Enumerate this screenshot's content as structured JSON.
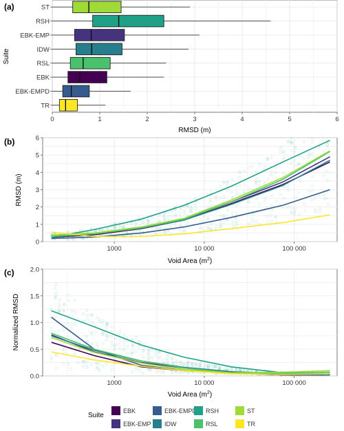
{
  "panels": {
    "a": {
      "letter": "(a)",
      "xlabel": "RMSD (m)",
      "ylabel": "Suite",
      "xticks": [
        "0",
        "1",
        "2",
        "3",
        "4",
        "5",
        "6"
      ]
    },
    "b": {
      "letter": "(b)",
      "xlabel_main": "Void Area (m",
      "xlabel_sup": "2",
      "xlabel_close": ")",
      "ylabel": "RMSD (m)",
      "xticks": [
        "1000",
        "10 000",
        "100 000"
      ],
      "yticks": [
        "0",
        "1",
        "2",
        "3",
        "4",
        "5",
        "6"
      ]
    },
    "c": {
      "letter": "(c)",
      "xlabel_main": "Void Area (m",
      "xlabel_sup": "2",
      "xlabel_close": ")",
      "ylabel": "Normalized RMSD",
      "xticks": [
        "1000",
        "10 000",
        "100 000"
      ],
      "yticks": [
        "0.0",
        "0.5",
        "1.0",
        "1.5",
        "2.0"
      ]
    }
  },
  "legend": {
    "title": "Suite",
    "position": "bottom",
    "items": [
      {
        "name": "EBK",
        "color": "#440154"
      },
      {
        "name": "EBK-EMP",
        "color": "#46337E"
      },
      {
        "name": "EBK-EMPD",
        "color": "#365C8D"
      },
      {
        "name": "IDW",
        "color": "#277F8E"
      },
      {
        "name": "RSH",
        "color": "#1FA187"
      },
      {
        "name": "RSL",
        "color": "#4AC16D"
      },
      {
        "name": "ST",
        "color": "#A0DA39"
      },
      {
        "name": "TR",
        "color": "#FDE725"
      }
    ]
  },
  "chart_data": [
    {
      "type": "box",
      "panel": "a",
      "orientation": "horizontal",
      "xlabel": "RMSD (m)",
      "ylabel": "Suite",
      "xlim": [
        0,
        6
      ],
      "grid": true,
      "series": [
        {
          "name": "ST",
          "color": "#A0DA39",
          "whisker_low": 0.0,
          "q1": 0.43,
          "median": 0.77,
          "q3": 1.45,
          "whisker_high": 2.9
        },
        {
          "name": "RSH",
          "color": "#1FA187",
          "whisker_low": 0.0,
          "q1": 0.85,
          "median": 1.4,
          "q3": 2.35,
          "whisker_high": 4.6
        },
        {
          "name": "EBK-EMP",
          "color": "#46337E",
          "whisker_low": 0.0,
          "q1": 0.47,
          "median": 0.82,
          "q3": 1.52,
          "whisker_high": 3.1
        },
        {
          "name": "IDW",
          "color": "#277F8E",
          "whisker_low": 0.0,
          "q1": 0.5,
          "median": 0.83,
          "q3": 1.47,
          "whisker_high": 2.87
        },
        {
          "name": "RSL",
          "color": "#4AC16D",
          "whisker_low": 0.0,
          "q1": 0.38,
          "median": 0.65,
          "q3": 1.22,
          "whisker_high": 2.4
        },
        {
          "name": "EBK",
          "color": "#440154",
          "whisker_low": 0.0,
          "q1": 0.33,
          "median": 0.58,
          "q3": 1.15,
          "whisker_high": 2.35
        },
        {
          "name": "EBK-EMPD",
          "color": "#365C8D",
          "whisker_low": 0.0,
          "q1": 0.22,
          "median": 0.4,
          "q3": 0.78,
          "whisker_high": 1.65
        },
        {
          "name": "TR",
          "color": "#FDE725",
          "whisker_low": 0.0,
          "q1": 0.15,
          "median": 0.28,
          "q3": 0.53,
          "whisker_high": 1.12
        }
      ]
    },
    {
      "type": "line",
      "panel": "b",
      "xscale": "log",
      "xlabel": "Void Area (m2)",
      "ylabel": "RMSD (m)",
      "xlim": [
        160,
        300000
      ],
      "ylim": [
        0,
        6
      ],
      "grid": true,
      "x": [
        200,
        600,
        2000,
        6000,
        20000,
        75000,
        250000
      ],
      "series": [
        {
          "name": "EBK",
          "color": "#440154",
          "values": [
            0.25,
            0.4,
            0.75,
            1.25,
            2.2,
            3.3,
            4.6
          ]
        },
        {
          "name": "EBK-EMP",
          "color": "#46337E",
          "values": [
            0.3,
            0.45,
            0.8,
            1.3,
            2.3,
            3.45,
            4.9
          ]
        },
        {
          "name": "EBK-EMPD",
          "color": "#365C8D",
          "values": [
            0.18,
            0.27,
            0.5,
            0.85,
            1.4,
            2.1,
            3.0
          ]
        },
        {
          "name": "IDW",
          "color": "#277F8E",
          "values": [
            0.28,
            0.45,
            0.78,
            1.25,
            2.15,
            3.25,
            4.7
          ]
        },
        {
          "name": "RSH",
          "color": "#1FA187",
          "values": [
            0.25,
            0.7,
            1.3,
            2.1,
            3.2,
            4.6,
            5.85
          ]
        },
        {
          "name": "RSL",
          "color": "#4AC16D",
          "values": [
            0.3,
            0.45,
            0.8,
            1.3,
            2.3,
            3.6,
            5.2
          ]
        },
        {
          "name": "ST",
          "color": "#A0DA39",
          "values": [
            0.38,
            0.5,
            0.85,
            1.35,
            2.4,
            3.7,
            5.25
          ]
        },
        {
          "name": "TR",
          "color": "#FDE725",
          "values": [
            0.55,
            0.3,
            0.3,
            0.45,
            0.75,
            1.1,
            1.55
          ]
        }
      ]
    },
    {
      "type": "line",
      "panel": "c",
      "xscale": "log",
      "xlabel": "Void Area (m2)",
      "ylabel": "Normalized RMSD",
      "xlim": [
        160,
        300000
      ],
      "ylim": [
        0,
        2.0
      ],
      "grid": true,
      "x": [
        200,
        600,
        2000,
        6000,
        20000,
        75000,
        250000
      ],
      "series": [
        {
          "name": "EBK",
          "color": "#440154",
          "values": [
            0.63,
            0.38,
            0.17,
            0.1,
            0.05,
            0.02,
            0.02
          ]
        },
        {
          "name": "EBK-EMP",
          "color": "#46337E",
          "values": [
            0.77,
            0.45,
            0.25,
            0.15,
            0.07,
            0.04,
            0.03
          ]
        },
        {
          "name": "EBK-EMPD",
          "color": "#365C8D",
          "values": [
            1.1,
            0.5,
            0.2,
            0.1,
            0.05,
            0.02,
            0.02
          ]
        },
        {
          "name": "IDW",
          "color": "#277F8E",
          "values": [
            0.75,
            0.48,
            0.28,
            0.16,
            0.08,
            0.04,
            0.04
          ]
        },
        {
          "name": "RSH",
          "color": "#1FA187",
          "values": [
            1.22,
            0.92,
            0.58,
            0.35,
            0.17,
            0.06,
            0.03
          ]
        },
        {
          "name": "RSL",
          "color": "#4AC16D",
          "values": [
            0.8,
            0.5,
            0.28,
            0.15,
            0.06,
            0.05,
            0.07
          ]
        },
        {
          "name": "ST",
          "color": "#A0DA39",
          "values": [
            0.72,
            0.44,
            0.24,
            0.12,
            0.06,
            0.07,
            0.1
          ]
        },
        {
          "name": "TR",
          "color": "#FDE725",
          "values": [
            0.45,
            0.3,
            0.18,
            0.1,
            0.04,
            0.03,
            0.04
          ]
        }
      ]
    }
  ]
}
